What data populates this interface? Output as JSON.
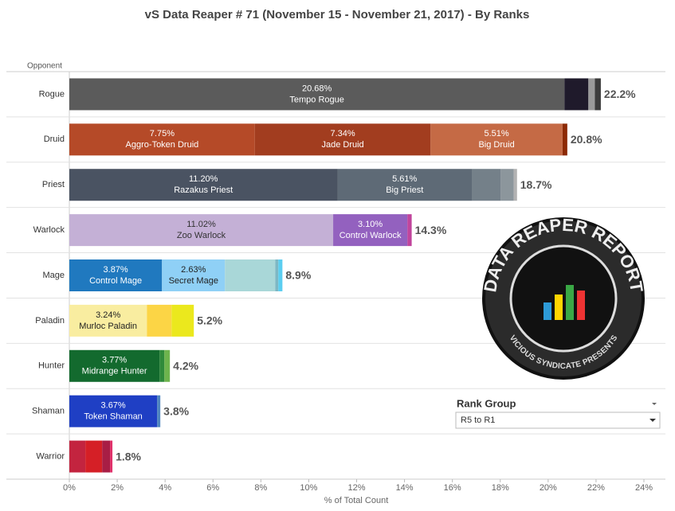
{
  "chart_data": {
    "type": "stacked-bar-horizontal",
    "title": "vS Data Reaper #  71 (November 15 - November 21, 2017) - By Ranks",
    "y_label": "Opponent",
    "x_label": "% of Total Count",
    "xlim": [
      0,
      24
    ],
    "xticks": [
      {
        "value": 0,
        "label": "0%"
      },
      {
        "value": 2,
        "label": "2%"
      },
      {
        "value": 4,
        "label": "4%"
      },
      {
        "value": 6,
        "label": "6%"
      },
      {
        "value": 8,
        "label": "8%"
      },
      {
        "value": 10,
        "label": "10%"
      },
      {
        "value": 12,
        "label": "12%"
      },
      {
        "value": 14,
        "label": "14%"
      },
      {
        "value": 16,
        "label": "16%"
      },
      {
        "value": 18,
        "label": "18%"
      },
      {
        "value": 20,
        "label": "20%"
      },
      {
        "value": 22,
        "label": "22%"
      },
      {
        "value": 24,
        "label": "24%"
      }
    ],
    "categories": [
      "Rogue",
      "Druid",
      "Priest",
      "Warlock",
      "Mage",
      "Paladin",
      "Hunter",
      "Shaman",
      "Warrior"
    ],
    "totals": [
      22.2,
      20.8,
      18.7,
      14.3,
      8.9,
      5.2,
      4.2,
      3.8,
      1.8
    ],
    "total_labels": [
      "22.2%",
      "20.8%",
      "18.7%",
      "14.3%",
      "8.9%",
      "5.2%",
      "4.2%",
      "3.8%",
      "1.8%"
    ],
    "segments": [
      [
        {
          "name": "Tempo Rogue",
          "value": 20.68,
          "value_label": "20.68%",
          "color": "#5b5b5b",
          "label_color": "#fff"
        },
        {
          "value": 1.0,
          "color": "#1f1a2b"
        },
        {
          "value": 0.27,
          "color": "#9a9a9a"
        },
        {
          "value": 0.25,
          "color": "#3c3c3c"
        }
      ],
      [
        {
          "name": "Aggro-Token Druid",
          "value": 7.75,
          "value_label": "7.75%",
          "color": "#b54a28",
          "label_color": "#fff"
        },
        {
          "name": "Jade Druid",
          "value": 7.34,
          "value_label": "7.34%",
          "color": "#a23d1f",
          "label_color": "#fff"
        },
        {
          "name": "Big Druid",
          "value": 5.51,
          "value_label": "5.51%",
          "color": "#c56a45",
          "label_color": "#fff"
        },
        {
          "value": 0.2,
          "color": "#8c2a05"
        }
      ],
      [
        {
          "name": "Razakus Priest",
          "value": 11.2,
          "value_label": "11.20%",
          "color": "#4a5362",
          "label_color": "#fff"
        },
        {
          "name": "Big Priest",
          "value": 5.61,
          "value_label": "5.61%",
          "color": "#5e6a76",
          "label_color": "#fff"
        },
        {
          "value": 1.2,
          "color": "#748089"
        },
        {
          "value": 0.55,
          "color": "#8c969c"
        },
        {
          "value": 0.14,
          "color": "#b2b2b2"
        }
      ],
      [
        {
          "name": "Zoo Warlock",
          "value": 11.02,
          "value_label": "11.02%",
          "color": "#c4b0d6",
          "label_color": "#333"
        },
        {
          "name": "Control Warlock",
          "value": 3.1,
          "value_label": "3.10%",
          "color": "#9361bf",
          "label_color": "#fff"
        },
        {
          "value": 0.18,
          "color": "#c0449c"
        }
      ],
      [
        {
          "name": "Control Mage",
          "value": 3.87,
          "value_label": "3.87%",
          "color": "#2079bf",
          "label_color": "#fff"
        },
        {
          "name": "Secret Mage",
          "value": 2.63,
          "value_label": "2.63%",
          "color": "#8fd0f6",
          "label_color": "#222"
        },
        {
          "value": 2.1,
          "color": "#a9d7d8"
        },
        {
          "value": 0.13,
          "color": "#7db7c4"
        },
        {
          "value": 0.17,
          "color": "#5bcef0"
        }
      ],
      [
        {
          "name": "Murloc Paladin",
          "value": 3.24,
          "value_label": "3.24%",
          "color": "#f9eda0",
          "label_color": "#222"
        },
        {
          "value": 1.03,
          "color": "#fcd545"
        },
        {
          "value": 0.93,
          "color": "#ebe81d"
        }
      ],
      [
        {
          "name": "Midrange Hunter",
          "value": 3.77,
          "value_label": "3.77%",
          "color": "#136a2e",
          "label_color": "#fff"
        },
        {
          "value": 0.2,
          "color": "#2f8a3a"
        },
        {
          "value": 0.23,
          "color": "#6db34c"
        }
      ],
      [
        {
          "name": "Token Shaman",
          "value": 3.67,
          "value_label": "3.67%",
          "color": "#1f3fc4",
          "label_color": "#fff"
        },
        {
          "value": 0.13,
          "color": "#4f86c0"
        }
      ],
      [
        {
          "value": 0.67,
          "color": "#c3243f"
        },
        {
          "value": 0.7,
          "color": "#d51f26"
        },
        {
          "value": 0.33,
          "color": "#a81e45"
        },
        {
          "value": 0.1,
          "color": "#e0306a"
        }
      ]
    ]
  },
  "filter": {
    "title": "Rank Group",
    "selected": "R5 to R1"
  },
  "logo": {
    "title": "DATA REAPER REPORT",
    "subtitle": "VICIOUS SYNDICATE PRESENTS"
  }
}
